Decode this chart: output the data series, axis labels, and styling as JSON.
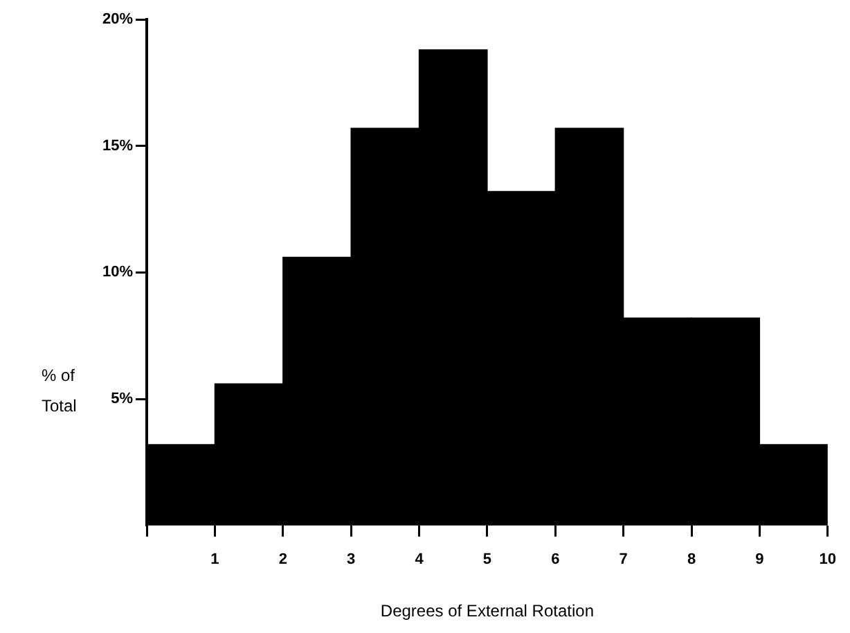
{
  "chart_data": {
    "type": "histogram",
    "xlabel": "Degrees of External Rotation",
    "ylabel": "% of Total",
    "bins": [
      0,
      1,
      2,
      3,
      4,
      5,
      6,
      7,
      8,
      9,
      10
    ],
    "values": [
      3.2,
      5.6,
      10.6,
      15.7,
      18.8,
      13.2,
      15.7,
      8.2,
      8.2,
      3.2
    ],
    "color": "#000000",
    "xlim": [
      0,
      10
    ],
    "xticks": [
      {
        "value": 0,
        "label": null
      },
      1,
      2,
      3,
      4,
      5,
      6,
      7,
      8,
      9,
      10
    ],
    "ylim": [
      0,
      20
    ],
    "yticks": [
      {
        "value": 5,
        "label": "5%"
      },
      {
        "value": 10,
        "label": "10%"
      },
      {
        "value": 15,
        "label": "15%"
      },
      {
        "value": 20,
        "label": "20%"
      }
    ],
    "grid": false,
    "legend": false
  }
}
